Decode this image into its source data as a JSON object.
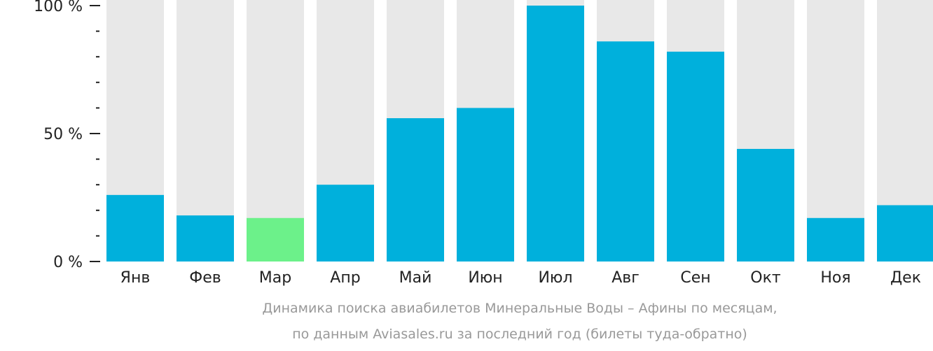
{
  "chart_data": {
    "type": "bar",
    "categories": [
      "Янв",
      "Фев",
      "Мар",
      "Апр",
      "Май",
      "Июн",
      "Июл",
      "Авг",
      "Сен",
      "Окт",
      "Ноя",
      "Дек"
    ],
    "values": [
      26,
      18,
      17,
      30,
      56,
      60,
      100,
      86,
      82,
      44,
      17,
      22
    ],
    "highlight_category": "Мар",
    "ylim": [
      0,
      100
    ],
    "y_ticks": [
      {
        "value": 0,
        "label": "0 %"
      },
      {
        "value": 50,
        "label": "50 %"
      },
      {
        "value": 100,
        "label": "100 %"
      }
    ],
    "y_minor_tick_step": 10,
    "caption_line1": "Динамика поиска авиабилетов Минеральные Воды – Афины по месяцам,",
    "caption_line2": "по данным Aviasales.ru за последний год (билеты туда-обратно)",
    "colors": {
      "bar": "#00b0dc",
      "highlight": "#6cf18a",
      "background_bar": "#e8e8e8",
      "axis": "#222222",
      "label": "#222222",
      "caption": "#999999"
    }
  }
}
